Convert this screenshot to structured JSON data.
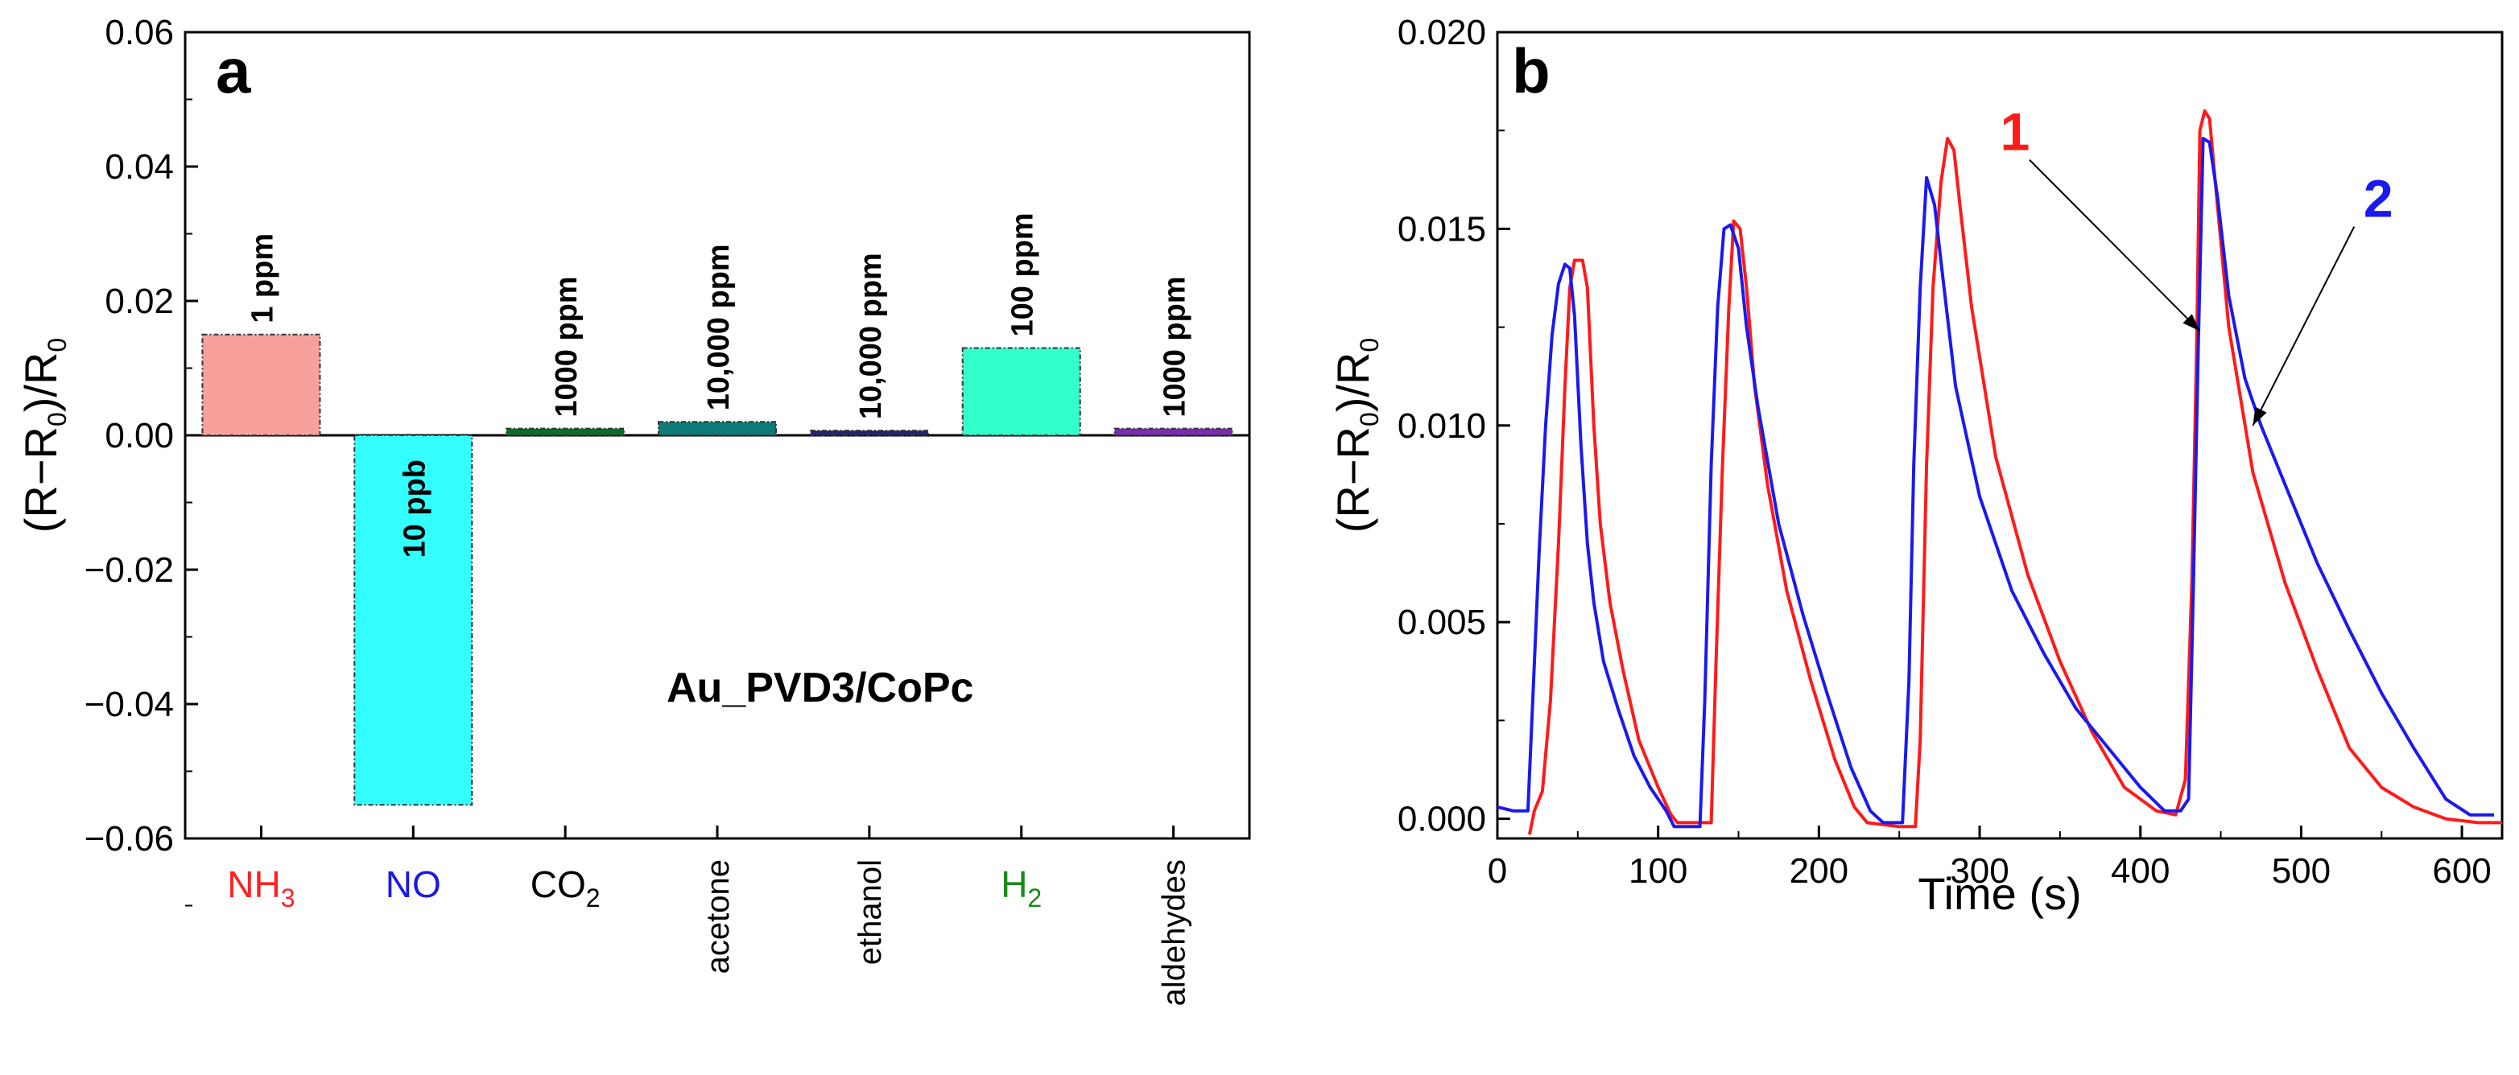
{
  "chart_data": [
    {
      "type": "bar",
      "panel_label": "a",
      "ylabel_parts": [
        "(R−R",
        "0",
        ")/R",
        "0"
      ],
      "ylim": [
        -0.06,
        0.06
      ],
      "yticks": [
        "0.06",
        "0.04",
        "0.02",
        "0.00",
        "−0.02",
        "−0.04",
        "−0.06"
      ],
      "ytick_values": [
        0.06,
        0.04,
        0.02,
        0.0,
        -0.02,
        -0.04,
        -0.06
      ],
      "annotation": "Au_PVD3/CoPc",
      "bars": [
        {
          "category": "NH3",
          "label_main": "NH",
          "label_sub": "3",
          "value": 0.015,
          "concentration": "1 ppm",
          "color": "#f7a09c",
          "label_color": "#ff2020",
          "rotated": false
        },
        {
          "category": "NO",
          "label_main": "NO",
          "label_sub": "",
          "value": -0.055,
          "concentration": "10 ppb",
          "color": "#33ffff",
          "label_color": "#1a1ae6",
          "rotated": false
        },
        {
          "category": "CO2",
          "label_main": "CO",
          "label_sub": "2",
          "value": 0.001,
          "concentration": "1000 ppm",
          "color": "#0a6e2a",
          "label_color": "#000000",
          "rotated": false
        },
        {
          "category": "acetone",
          "label_main": "acetone",
          "label_sub": "",
          "value": 0.002,
          "concentration": "10,000 ppm",
          "color": "#0e7a78",
          "label_color": "#000000",
          "rotated": true
        },
        {
          "category": "ethanol",
          "label_main": "ethanol",
          "label_sub": "",
          "value": 0.0007,
          "concentration": "10,000 ppm",
          "color": "#22226e",
          "label_color": "#000000",
          "rotated": true
        },
        {
          "category": "H2",
          "label_main": "H",
          "label_sub": "2",
          "value": 0.013,
          "concentration": "100 ppm",
          "color": "#33ffcc",
          "label_color": "#1a8a1a",
          "rotated": false
        },
        {
          "category": "aldehydes",
          "label_main": "aldehydes",
          "label_sub": "",
          "value": 0.001,
          "concentration": "1000 ppm",
          "color": "#7b2bb0",
          "label_color": "#000000",
          "rotated": true
        }
      ]
    },
    {
      "type": "line",
      "panel_label": "b",
      "xlabel": "Time (s)",
      "ylabel_parts": [
        "(R−R",
        "0",
        ")/R",
        "0"
      ],
      "xlim": [
        0,
        625
      ],
      "ylim": [
        -0.0005,
        0.02
      ],
      "xticks": [
        "0",
        "100",
        "200",
        "300",
        "400",
        "500",
        "600"
      ],
      "xtick_values": [
        0,
        100,
        200,
        300,
        400,
        500,
        600
      ],
      "yticks": [
        "0.000",
        "0.005",
        "0.010",
        "0.015",
        "0.020"
      ],
      "ytick_values": [
        0.0,
        0.005,
        0.01,
        0.015,
        0.02
      ],
      "series": [
        {
          "name": "1",
          "color": "#ff1a1a",
          "points": [
            [
              20,
              -0.0004
            ],
            [
              23,
              0.0002
            ],
            [
              28,
              0.0007
            ],
            [
              33,
              0.003
            ],
            [
              38,
              0.007
            ],
            [
              42,
              0.011
            ],
            [
              45,
              0.0135
            ],
            [
              48,
              0.0142
            ],
            [
              53,
              0.0142
            ],
            [
              56,
              0.0135
            ],
            [
              60,
              0.01
            ],
            [
              64,
              0.0075
            ],
            [
              70,
              0.0055
            ],
            [
              78,
              0.0038
            ],
            [
              88,
              0.002
            ],
            [
              100,
              0.0008
            ],
            [
              108,
              0.0001
            ],
            [
              112,
              -0.0001
            ],
            [
              125,
              -0.0001
            ],
            [
              133,
              -0.0001
            ],
            [
              136,
              0.004
            ],
            [
              140,
              0.009
            ],
            [
              144,
              0.013
            ],
            [
              147,
              0.0152
            ],
            [
              151,
              0.015
            ],
            [
              155,
              0.0135
            ],
            [
              160,
              0.011
            ],
            [
              168,
              0.0085
            ],
            [
              180,
              0.0058
            ],
            [
              195,
              0.0035
            ],
            [
              210,
              0.0015
            ],
            [
              222,
              0.0003
            ],
            [
              230,
              -0.0001
            ],
            [
              250,
              -0.0002
            ],
            [
              260,
              -0.0002
            ],
            [
              263,
              0.002
            ],
            [
              267,
              0.009
            ],
            [
              271,
              0.0135
            ],
            [
              276,
              0.0162
            ],
            [
              280,
              0.0173
            ],
            [
              284,
              0.017
            ],
            [
              288,
              0.0155
            ],
            [
              295,
              0.013
            ],
            [
              310,
              0.0092
            ],
            [
              330,
              0.0062
            ],
            [
              350,
              0.004
            ],
            [
              370,
              0.0022
            ],
            [
              390,
              0.0008
            ],
            [
              410,
              0.0002
            ],
            [
              422,
              0.0001
            ],
            [
              428,
              0.001
            ],
            [
              432,
              0.006
            ],
            [
              435,
              0.012
            ],
            [
              437,
              0.0175
            ],
            [
              440,
              0.018
            ],
            [
              443,
              0.0178
            ],
            [
              447,
              0.016
            ],
            [
              455,
              0.0125
            ],
            [
              470,
              0.0088
            ],
            [
              490,
              0.006
            ],
            [
              510,
              0.0038
            ],
            [
              530,
              0.0018
            ],
            [
              550,
              0.0008
            ],
            [
              570,
              0.0003
            ],
            [
              590,
              0.0
            ],
            [
              610,
              -0.0001
            ],
            [
              625,
              -0.0001
            ]
          ]
        },
        {
          "name": "2",
          "color": "#1a1aee",
          "points": [
            [
              0,
              0.0003
            ],
            [
              10,
              0.0002
            ],
            [
              19,
              0.0002
            ],
            [
              22,
              0.003
            ],
            [
              26,
              0.0068
            ],
            [
              30,
              0.01
            ],
            [
              34,
              0.0123
            ],
            [
              38,
              0.0136
            ],
            [
              42,
              0.0141
            ],
            [
              45,
              0.014
            ],
            [
              48,
              0.0128
            ],
            [
              52,
              0.0095
            ],
            [
              56,
              0.007
            ],
            [
              60,
              0.0055
            ],
            [
              66,
              0.004
            ],
            [
              75,
              0.0028
            ],
            [
              85,
              0.0016
            ],
            [
              95,
              0.0008
            ],
            [
              105,
              0.0002
            ],
            [
              110,
              -0.0002
            ],
            [
              126,
              -0.0002
            ],
            [
              129,
              0.003
            ],
            [
              133,
              0.009
            ],
            [
              137,
              0.013
            ],
            [
              141,
              0.015
            ],
            [
              145,
              0.0151
            ],
            [
              150,
              0.0145
            ],
            [
              155,
              0.0125
            ],
            [
              162,
              0.0105
            ],
            [
              175,
              0.0075
            ],
            [
              190,
              0.0052
            ],
            [
              205,
              0.0032
            ],
            [
              220,
              0.0013
            ],
            [
              232,
              0.0002
            ],
            [
              240,
              -0.0001
            ],
            [
              252,
              -0.0001
            ],
            [
              256,
              0.0035
            ],
            [
              259,
              0.009
            ],
            [
              263,
              0.0135
            ],
            [
              267,
              0.0163
            ],
            [
              272,
              0.0156
            ],
            [
              277,
              0.0138
            ],
            [
              285,
              0.011
            ],
            [
              300,
              0.0082
            ],
            [
              320,
              0.0058
            ],
            [
              340,
              0.0042
            ],
            [
              360,
              0.0028
            ],
            [
              380,
              0.0018
            ],
            [
              400,
              0.0008
            ],
            [
              415,
              0.0002
            ],
            [
              425,
              0.0002
            ],
            [
              430,
              0.0005
            ],
            [
              433,
              0.006
            ],
            [
              436,
              0.012
            ],
            [
              439,
              0.0173
            ],
            [
              443,
              0.0172
            ],
            [
              448,
              0.0158
            ],
            [
              455,
              0.0133
            ],
            [
              465,
              0.0112
            ],
            [
              475,
              0.01
            ],
            [
              490,
              0.0085
            ],
            [
              510,
              0.0065
            ],
            [
              530,
              0.0048
            ],
            [
              550,
              0.0032
            ],
            [
              570,
              0.0018
            ],
            [
              590,
              0.0005
            ],
            [
              605,
              0.0001
            ],
            [
              620,
              0.0001
            ]
          ]
        }
      ],
      "callouts": [
        {
          "label": "1",
          "color": "#ff1a1a",
          "target": [
            437,
            0.0124
          ],
          "text_at": [
            322,
            0.017
          ]
        },
        {
          "label": "2",
          "color": "#1a1aee",
          "target": [
            470,
            0.01
          ],
          "text_at": [
            548,
            0.0153
          ]
        }
      ]
    }
  ]
}
